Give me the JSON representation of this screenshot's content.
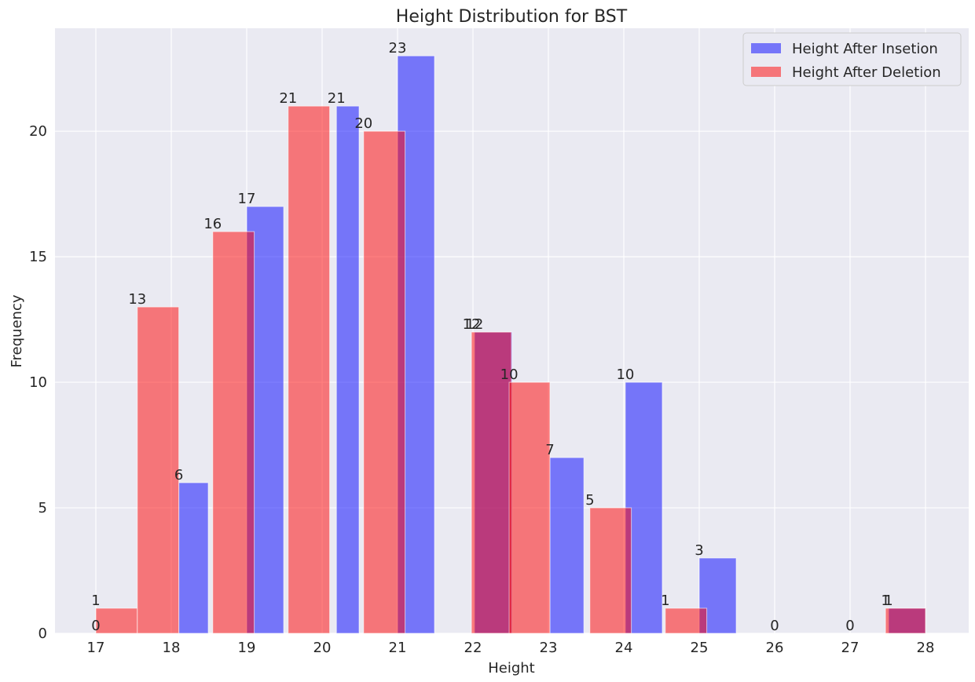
{
  "chart_data": {
    "type": "bar",
    "title": "Height Distribution for BST",
    "xlabel": "Height",
    "ylabel": "Frequency",
    "ylim": [
      0,
      24.1
    ],
    "grid": true,
    "legend_position": "top-right",
    "x_ticks": [
      "17",
      "18",
      "19",
      "20",
      "21",
      "22",
      "23",
      "24",
      "25",
      "26",
      "27",
      "28"
    ],
    "y_ticks": [
      "0",
      "5",
      "10",
      "15",
      "20"
    ],
    "series": [
      {
        "name": "Height After Insetion",
        "color": "#0000ff",
        "opacity": 0.5,
        "x": [
          17,
          18,
          19,
          20,
          21,
          22,
          23,
          24,
          25,
          26,
          27,
          28
        ],
        "values": [
          0,
          6,
          17,
          21,
          23,
          12,
          7,
          10,
          3,
          0,
          0,
          1
        ],
        "labels": [
          "0",
          "6",
          "17",
          "21",
          "23",
          "12",
          "7",
          "10",
          "3",
          "0",
          "0",
          "1"
        ]
      },
      {
        "name": "Height After Deletion",
        "color": "#ff0000",
        "opacity": 0.5,
        "x": [
          17,
          18,
          19,
          20,
          21,
          22,
          23,
          24,
          25,
          28
        ],
        "values": [
          1,
          13,
          16,
          21,
          20,
          12,
          10,
          5,
          1,
          1
        ],
        "labels": [
          "1",
          "13",
          "16",
          "21",
          "20",
          "12",
          "10",
          "5",
          "1",
          "1"
        ]
      }
    ]
  }
}
